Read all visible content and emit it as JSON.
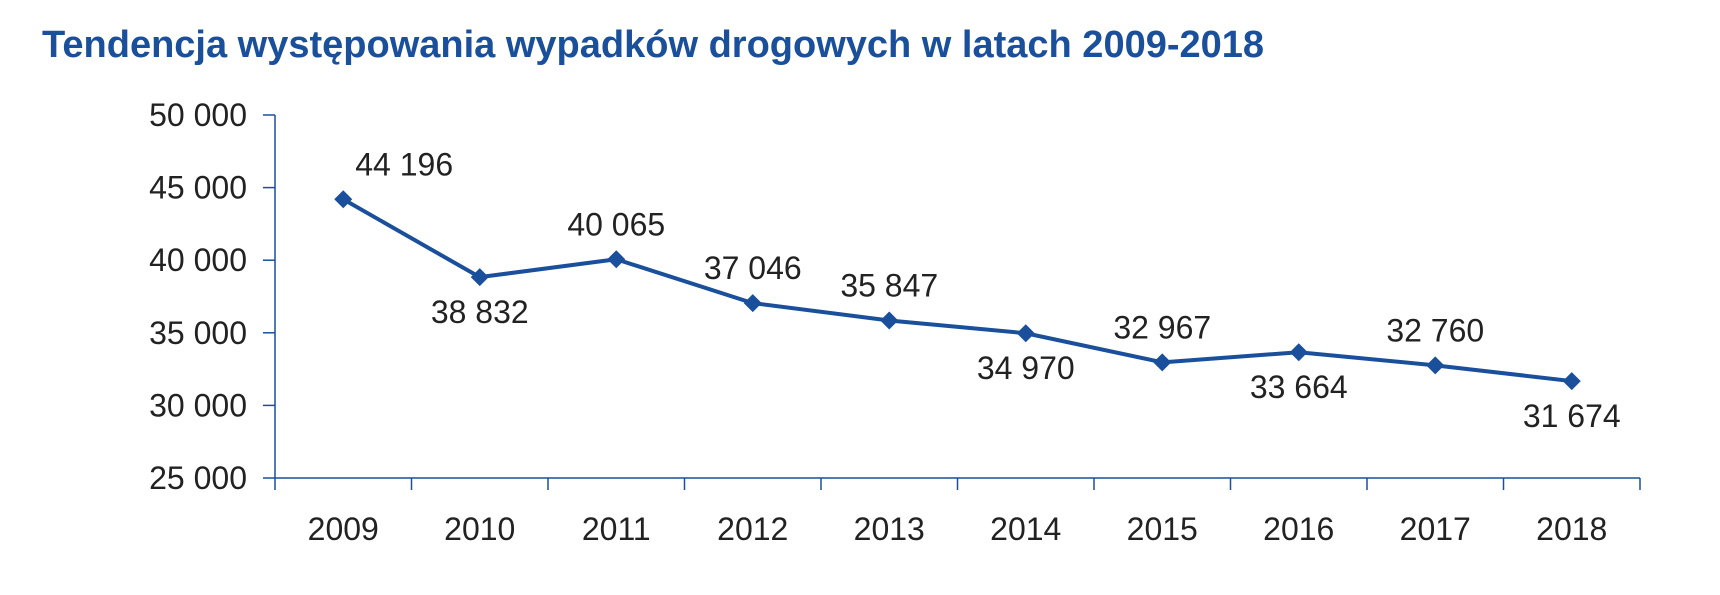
{
  "chart_data": {
    "type": "line",
    "title": "Tendencja występowania wypadków drogowych w latach 2009-2018",
    "categories": [
      "2009",
      "2010",
      "2011",
      "2012",
      "2013",
      "2014",
      "2015",
      "2016",
      "2017",
      "2018"
    ],
    "series": [
      {
        "values": [
          44196,
          38832,
          40065,
          37046,
          35847,
          34970,
          32967,
          33664,
          32760,
          31674
        ],
        "data_labels": [
          "44 196",
          "38 832",
          "40 065",
          "37 046",
          "35 847",
          "34 970",
          "32 967",
          "33 664",
          "32 760",
          "31 674"
        ],
        "data_label_positions": [
          "above",
          "below",
          "above",
          "above",
          "above",
          "below",
          "above",
          "below",
          "above",
          "below"
        ],
        "color": "#1a4f9c",
        "marker": "diamond"
      }
    ],
    "ylim": [
      25000,
      50000
    ],
    "yticks": [
      25000,
      30000,
      35000,
      40000,
      45000,
      50000
    ],
    "ytick_labels": [
      "25 000",
      "30 000",
      "35 000",
      "40 000",
      "45 000",
      "50 000"
    ],
    "xlabel": "",
    "ylabel": "",
    "grid": false,
    "legend": "none",
    "axis_color": "#1a4f9c",
    "title_color": "#1a4f9c"
  }
}
